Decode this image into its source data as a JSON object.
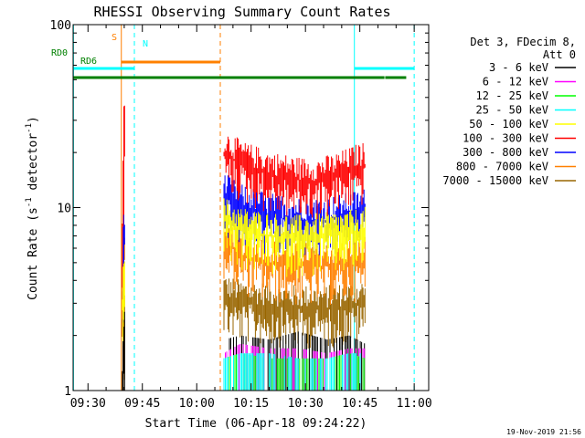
{
  "chart_data": {
    "type": "line",
    "title": "RHESSI Observing Summary Count Rates",
    "xlabel": "Start Time (06-Apr-18 09:24:22)",
    "ylabel_main": "Count Rate (s",
    "ylabel_sup1": "-1",
    "ylabel_mid": " detector",
    "ylabel_sup2": "-1",
    "ylabel_end": ")",
    "footer": "19-Nov-2019 21:56",
    "x_unit": "minutes of day",
    "xlim": [
      565.9,
      664.0
    ],
    "ylim": [
      1,
      100
    ],
    "y_scale": "log",
    "grid": false,
    "legend_position": "right",
    "x_ticks": [
      {
        "label": "09:30",
        "value": 570
      },
      {
        "label": "09:45",
        "value": 585
      },
      {
        "label": "10:00",
        "value": 600
      },
      {
        "label": "10:15",
        "value": 615
      },
      {
        "label": "10:30",
        "value": 630
      },
      {
        "label": "10:45",
        "value": 645
      },
      {
        "label": "11:00",
        "value": 660
      }
    ],
    "y_ticks": [
      {
        "label": "1",
        "value": 1
      },
      {
        "label": "10",
        "value": 10
      },
      {
        "label": "100",
        "value": 100
      }
    ],
    "legend": {
      "header_line1": "Det 3, FDecim 8,",
      "header_line2": "Att 0",
      "entries": [
        {
          "label": "3 - 6 keV",
          "color": "#000000"
        },
        {
          "label": "6 - 12 keV",
          "color": "#ff00ff"
        },
        {
          "label": "12 - 25 keV",
          "color": "#00ff00"
        },
        {
          "label": "25 - 50 keV",
          "color": "#00ffff"
        },
        {
          "label": "50 - 100 keV",
          "color": "#ffff00"
        },
        {
          "label": "100 - 300 keV",
          "color": "#ff0000"
        },
        {
          "label": "300 - 800 keV",
          "color": "#0000ff"
        },
        {
          "label": "800 - 7000 keV",
          "color": "#ff8000"
        },
        {
          "label": "7000 - 15000 keV",
          "color": "#996600"
        }
      ]
    },
    "flags": [
      {
        "label": "S",
        "color": "#ff8000",
        "segments": [
          [
            579.2,
            606.5
          ]
        ],
        "level": 84
      },
      {
        "label": "N",
        "color": "#00ffff",
        "segments": [
          [
            566.0,
            582.8
          ],
          [
            643.5,
            660.0
          ]
        ],
        "level": 77
      },
      {
        "label": "RD0",
        "color": "#008000",
        "segments": [
          [
            566.0,
            651.8
          ],
          [
            652.0,
            657.8
          ]
        ],
        "level": 70
      },
      {
        "label": "RD6",
        "color": "#008000",
        "segments": [],
        "level": 65
      }
    ],
    "vertical_lines": [
      {
        "color": "#00ffff",
        "style": "solid",
        "x": 566.0
      },
      {
        "color": "#ff8000",
        "style": "solid",
        "x": 579.2
      },
      {
        "color": "#00ffff",
        "style": "dashed",
        "x": 582.8
      },
      {
        "color": "#ff8000",
        "style": "dashed",
        "x": 606.5
      },
      {
        "color": "#00ffff",
        "style": "solid",
        "x": 643.5
      },
      {
        "color": "#00ffff",
        "style": "dashed",
        "x": 660.0
      }
    ],
    "series": [
      {
        "name": "3 - 6 keV",
        "color": "#000000",
        "x": [
          579.5,
          580.0,
          607.5,
          612,
          620,
          628,
          636,
          642,
          646.5
        ],
        "y": [
          1.0,
          1.8,
          1.9,
          2.0,
          1.9,
          2.1,
          1.9,
          2.0,
          1.8
        ]
      },
      {
        "name": "6 - 12 keV",
        "color": "#ff00ff",
        "x": [
          607.5,
          612,
          620,
          628,
          636,
          642,
          646.5
        ],
        "y": [
          1.6,
          1.8,
          1.7,
          1.7,
          1.6,
          1.7,
          1.7
        ]
      },
      {
        "name": "12 - 25 keV",
        "color": "#00ff00",
        "x": [
          607.5,
          612,
          620,
          628,
          636,
          642,
          646.5
        ],
        "y": [
          1.5,
          1.6,
          1.5,
          1.5,
          1.5,
          1.6,
          1.5
        ]
      },
      {
        "name": "25 - 50 keV",
        "color": "#00ffff",
        "x": [
          607.5,
          612,
          620,
          628,
          636,
          642,
          646.5
        ],
        "y": [
          1.5,
          1.6,
          1.6,
          1.5,
          1.5,
          1.6,
          1.6
        ]
      },
      {
        "name": "50 - 100 keV",
        "color": "#ffff00",
        "x": [
          579.5,
          580.0,
          607.5,
          612,
          620,
          628,
          636,
          642,
          646.5
        ],
        "y": [
          3.0,
          5.0,
          8.5,
          7.5,
          7.0,
          6.8,
          7.0,
          7.2,
          7.5
        ]
      },
      {
        "name": "100 - 300 keV",
        "color": "#ff0000",
        "x": [
          579.5,
          580.0,
          580.5,
          607.5,
          610,
          613,
          617,
          621,
          625,
          629,
          633,
          637,
          641,
          644,
          646.5
        ],
        "y": [
          8.0,
          30.0,
          12.0,
          20.0,
          18.5,
          17.0,
          16.0,
          15.0,
          14.5,
          14.0,
          14.0,
          14.5,
          15.5,
          16.5,
          17.0
        ]
      },
      {
        "name": "300 - 800 keV",
        "color": "#0000ff",
        "x": [
          579.5,
          580.0,
          607.5,
          612,
          620,
          628,
          636,
          642,
          646.5
        ],
        "y": [
          4.0,
          8.0,
          11.5,
          10.0,
          9.0,
          8.5,
          8.5,
          9.0,
          9.5
        ]
      },
      {
        "name": "800 - 7000 keV",
        "color": "#ff8000",
        "x": [
          579.5,
          580.0,
          607.5,
          612,
          620,
          628,
          636,
          642,
          646.5
        ],
        "y": [
          3.5,
          6.0,
          6.5,
          5.5,
          5.0,
          4.8,
          4.8,
          5.0,
          5.2
        ]
      },
      {
        "name": "7000 - 15000 keV",
        "color": "#996600",
        "x": [
          579.5,
          580.0,
          607.5,
          612,
          620,
          628,
          636,
          642,
          646.5
        ],
        "y": [
          2.5,
          3.0,
          3.2,
          3.0,
          2.9,
          2.8,
          2.8,
          2.9,
          3.0
        ]
      }
    ]
  }
}
